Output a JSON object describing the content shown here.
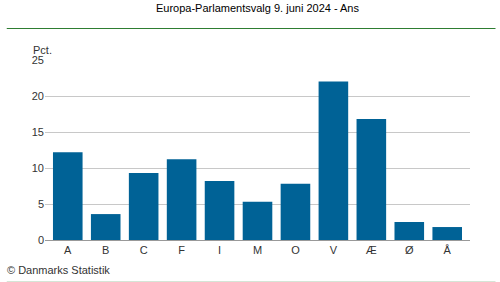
{
  "chart_data": {
    "type": "bar",
    "title": "Europa-Parlamentsvalg 9. juni 2024 - Ans",
    "y_label": "Pct.",
    "annotations": [
      "© Danmarks Statistik"
    ],
    "categories": [
      "A",
      "B",
      "C",
      "F",
      "I",
      "M",
      "O",
      "V",
      "Æ",
      "Ø",
      "Å"
    ],
    "values": [
      12.2,
      3.6,
      9.3,
      11.2,
      8.2,
      5.3,
      7.8,
      22.0,
      16.8,
      2.5,
      1.8
    ],
    "color": "#006296",
    "ylim": [
      0,
      25
    ],
    "yticks": [
      0,
      5,
      10,
      15,
      20,
      25
    ],
    "grid": true
  }
}
